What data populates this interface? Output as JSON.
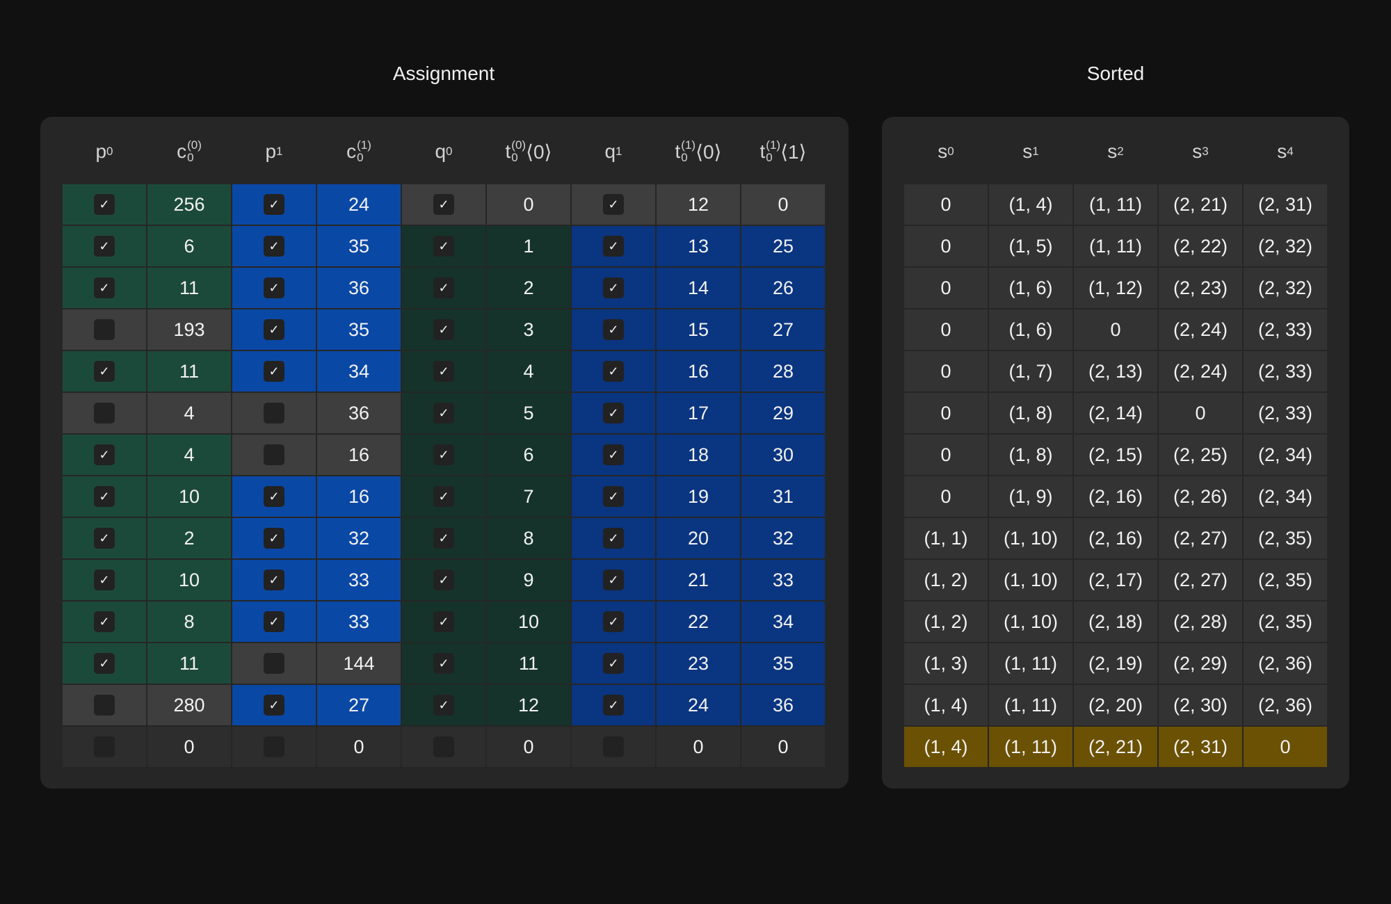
{
  "assignment": {
    "title": "Assignment",
    "columns": [
      "p0",
      "c0(0)",
      "p1",
      "c0(1)",
      "q0",
      "t0(0)⟨0⟩",
      "q1",
      "t0(1)⟨0⟩",
      "t0(1)⟨1⟩"
    ],
    "rows": [
      {
        "p0": true,
        "c00": "256",
        "p1": true,
        "c01": "24",
        "q0": true,
        "t00": "0",
        "q1": true,
        "t10": "12",
        "t11": "0"
      },
      {
        "p0": true,
        "c00": "6",
        "p1": true,
        "c01": "35",
        "q0": true,
        "t00": "1",
        "q1": true,
        "t10": "13",
        "t11": "25"
      },
      {
        "p0": true,
        "c00": "11",
        "p1": true,
        "c01": "36",
        "q0": true,
        "t00": "2",
        "q1": true,
        "t10": "14",
        "t11": "26"
      },
      {
        "p0": false,
        "c00": "193",
        "p1": true,
        "c01": "35",
        "q0": true,
        "t00": "3",
        "q1": true,
        "t10": "15",
        "t11": "27"
      },
      {
        "p0": true,
        "c00": "11",
        "p1": true,
        "c01": "34",
        "q0": true,
        "t00": "4",
        "q1": true,
        "t10": "16",
        "t11": "28"
      },
      {
        "p0": false,
        "c00": "4",
        "p1": false,
        "c01": "36",
        "q0": true,
        "t00": "5",
        "q1": true,
        "t10": "17",
        "t11": "29"
      },
      {
        "p0": true,
        "c00": "4",
        "p1": false,
        "c01": "16",
        "q0": true,
        "t00": "6",
        "q1": true,
        "t10": "18",
        "t11": "30"
      },
      {
        "p0": true,
        "c00": "10",
        "p1": true,
        "c01": "16",
        "q0": true,
        "t00": "7",
        "q1": true,
        "t10": "19",
        "t11": "31"
      },
      {
        "p0": true,
        "c00": "2",
        "p1": true,
        "c01": "32",
        "q0": true,
        "t00": "8",
        "q1": true,
        "t10": "20",
        "t11": "32"
      },
      {
        "p0": true,
        "c00": "10",
        "p1": true,
        "c01": "33",
        "q0": true,
        "t00": "9",
        "q1": true,
        "t10": "21",
        "t11": "33"
      },
      {
        "p0": true,
        "c00": "8",
        "p1": true,
        "c01": "33",
        "q0": true,
        "t00": "10",
        "q1": true,
        "t10": "22",
        "t11": "34"
      },
      {
        "p0": true,
        "c00": "11",
        "p1": false,
        "c01": "144",
        "q0": true,
        "t00": "11",
        "q1": true,
        "t10": "23",
        "t11": "35"
      },
      {
        "p0": false,
        "c00": "280",
        "p1": true,
        "c01": "27",
        "q0": true,
        "t00": "12",
        "q1": true,
        "t10": "24",
        "t11": "36"
      },
      {
        "p0": false,
        "c00": "0",
        "p1": false,
        "c01": "0",
        "q0": false,
        "t00": "0",
        "q1": false,
        "t10": "0",
        "t11": "0"
      }
    ]
  },
  "sorted": {
    "title": "Sorted",
    "columns": [
      "s0",
      "s1",
      "s2",
      "s3",
      "s4"
    ],
    "rows": [
      [
        "0",
        "(1, 4)",
        "(1, 11)",
        "(2, 21)",
        "(2, 31)"
      ],
      [
        "0",
        "(1, 5)",
        "(1, 11)",
        "(2, 22)",
        "(2, 32)"
      ],
      [
        "0",
        "(1, 6)",
        "(1, 12)",
        "(2, 23)",
        "(2, 32)"
      ],
      [
        "0",
        "(1, 6)",
        "0",
        "(2, 24)",
        "(2, 33)"
      ],
      [
        "0",
        "(1, 7)",
        "(2, 13)",
        "(2, 24)",
        "(2, 33)"
      ],
      [
        "0",
        "(1, 8)",
        "(2, 14)",
        "0",
        "(2, 33)"
      ],
      [
        "0",
        "(1, 8)",
        "(2, 15)",
        "(2, 25)",
        "(2, 34)"
      ],
      [
        "0",
        "(1, 9)",
        "(2, 16)",
        "(2, 26)",
        "(2, 34)"
      ],
      [
        "(1, 1)",
        "(1, 10)",
        "(2, 16)",
        "(2, 27)",
        "(2, 35)"
      ],
      [
        "(1, 2)",
        "(1, 10)",
        "(2, 17)",
        "(2, 27)",
        "(2, 35)"
      ],
      [
        "(1, 2)",
        "(1, 10)",
        "(2, 18)",
        "(2, 28)",
        "(2, 35)"
      ],
      [
        "(1, 3)",
        "(1, 11)",
        "(2, 19)",
        "(2, 29)",
        "(2, 36)"
      ],
      [
        "(1, 4)",
        "(1, 11)",
        "(2, 20)",
        "(2, 30)",
        "(2, 36)"
      ],
      [
        "(1, 4)",
        "(1, 11)",
        "(2, 21)",
        "(2, 31)",
        "0"
      ]
    ]
  },
  "colors": {
    "background": "#111111",
    "panel": "#262626",
    "green": "#1c4a3a",
    "dark_green": "#15332a",
    "blue": "#0a48a6",
    "dark_blue": "#0a3580",
    "gray": "#3e3e3e",
    "highlight": "#6b5104"
  },
  "icons": {
    "check": "check-icon"
  }
}
